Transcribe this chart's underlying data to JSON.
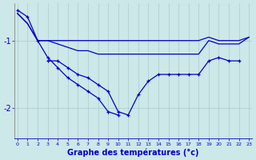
{
  "title": "Graphe des températures (°c)",
  "hours": [
    0,
    1,
    2,
    3,
    4,
    5,
    6,
    7,
    8,
    9,
    10,
    11,
    12,
    13,
    14,
    15,
    16,
    17,
    18,
    19,
    20,
    21,
    22,
    23
  ],
  "bg_color": "#cce8e8",
  "grid_color": "#aacccc",
  "line_color": "#0000cc",
  "ylabel_vals": [
    -2,
    -1
  ],
  "ylim": [
    -2.45,
    -0.45
  ],
  "xlim": [
    -0.3,
    23.3
  ],
  "line1_y": [
    -0.6,
    -0.75,
    -1.0,
    -1.0,
    -1.0,
    -1.0,
    -1.0,
    -1.0,
    -1.0,
    -1.0,
    -1.0,
    -1.0,
    -1.0,
    -1.0,
    -1.0,
    -1.0,
    -1.0,
    -1.0,
    -1.0,
    -0.95,
    -1.0,
    -1.0,
    -1.0,
    -0.95
  ],
  "line2_y": [
    -0.6,
    -0.75,
    -1.0,
    -1.0,
    -1.05,
    -1.1,
    -1.15,
    -1.15,
    -1.2,
    -1.2,
    -1.2,
    -1.2,
    -1.2,
    -1.2,
    -1.2,
    -1.2,
    -1.2,
    -1.2,
    -1.2,
    -1.0,
    -1.05,
    -1.05,
    -1.05,
    -0.95
  ],
  "line3_x": [
    3,
    4,
    5,
    6,
    7,
    8,
    9,
    10,
    11,
    12,
    13,
    14,
    15,
    16,
    17,
    18,
    19,
    20,
    21,
    22
  ],
  "line3_y": [
    -1.3,
    -1.3,
    -1.4,
    -1.5,
    -1.55,
    -1.65,
    -1.75,
    -2.05,
    -2.1,
    -1.8,
    -1.6,
    -1.5,
    -1.5,
    -1.5,
    -1.5,
    -1.5,
    -1.3,
    -1.25,
    -1.3,
    -1.3
  ],
  "line4_x": [
    0,
    1,
    2,
    3,
    4,
    5,
    6,
    7,
    8,
    9,
    10
  ],
  "line4_y": [
    -0.55,
    -0.65,
    -1.0,
    -1.25,
    -1.4,
    -1.55,
    -1.65,
    -1.75,
    -1.85,
    -2.05,
    -2.1
  ]
}
